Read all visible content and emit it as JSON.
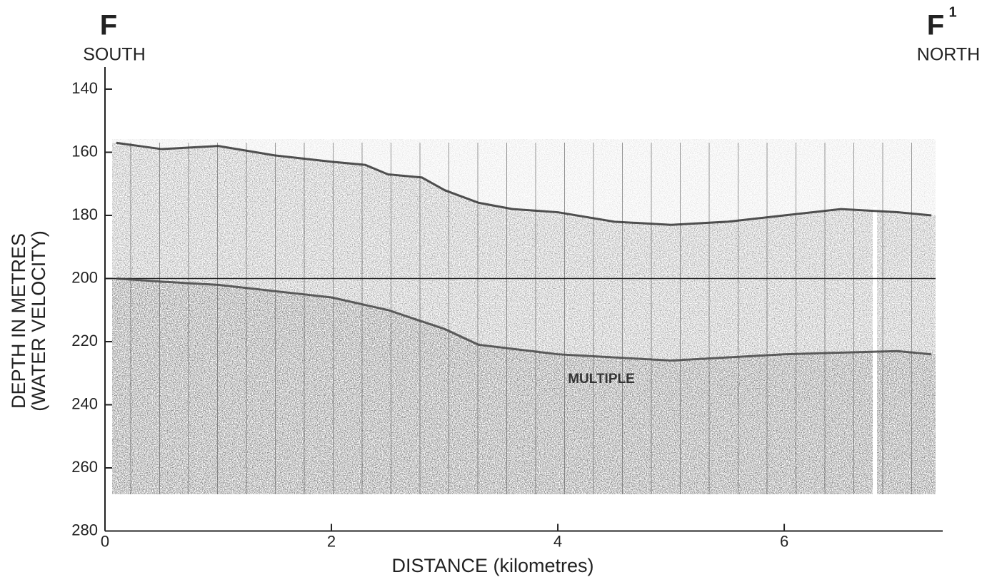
{
  "chart_data": {
    "type": "line",
    "header": {
      "left_letter": "F",
      "left_direction": "SOUTH",
      "right_letter": "F",
      "right_superscript": "1",
      "right_direction": "NORTH"
    },
    "y_label": [
      "DEPTH IN METRES",
      "(WATER VELOCITY)"
    ],
    "x_label": "DISTANCE (kilometres)",
    "annotation": "MULTIPLE",
    "xlim": [
      0,
      7.4
    ],
    "xticks": [
      0,
      2,
      4,
      6
    ],
    "ylim": [
      133,
      280
    ],
    "yticks": [
      140,
      160,
      180,
      200,
      220,
      240,
      260,
      280
    ],
    "y_inverted": true,
    "hlines": [
      200
    ],
    "series": [
      {
        "color": "#333333",
        "x": [
          0.1,
          0.5,
          1.0,
          1.5,
          2.0,
          2.3,
          2.5,
          2.8,
          3.0,
          3.3,
          3.6,
          4.0,
          4.5,
          5.0,
          5.5,
          6.0,
          6.5,
          7.0,
          7.3
        ],
        "values": [
          157,
          159,
          158,
          161,
          163,
          164,
          167,
          168,
          172,
          176,
          178,
          179,
          182,
          183,
          182,
          180,
          178,
          179,
          180
        ]
      },
      {
        "color": "#444444",
        "x": [
          0.1,
          0.5,
          1.0,
          1.5,
          2.0,
          2.5,
          3.0,
          3.3,
          4.0,
          5.0,
          6.0,
          7.0,
          7.3
        ],
        "values": [
          200,
          201,
          202,
          204,
          206,
          210,
          216,
          221,
          224,
          226,
          224,
          223,
          224
        ]
      }
    ]
  }
}
